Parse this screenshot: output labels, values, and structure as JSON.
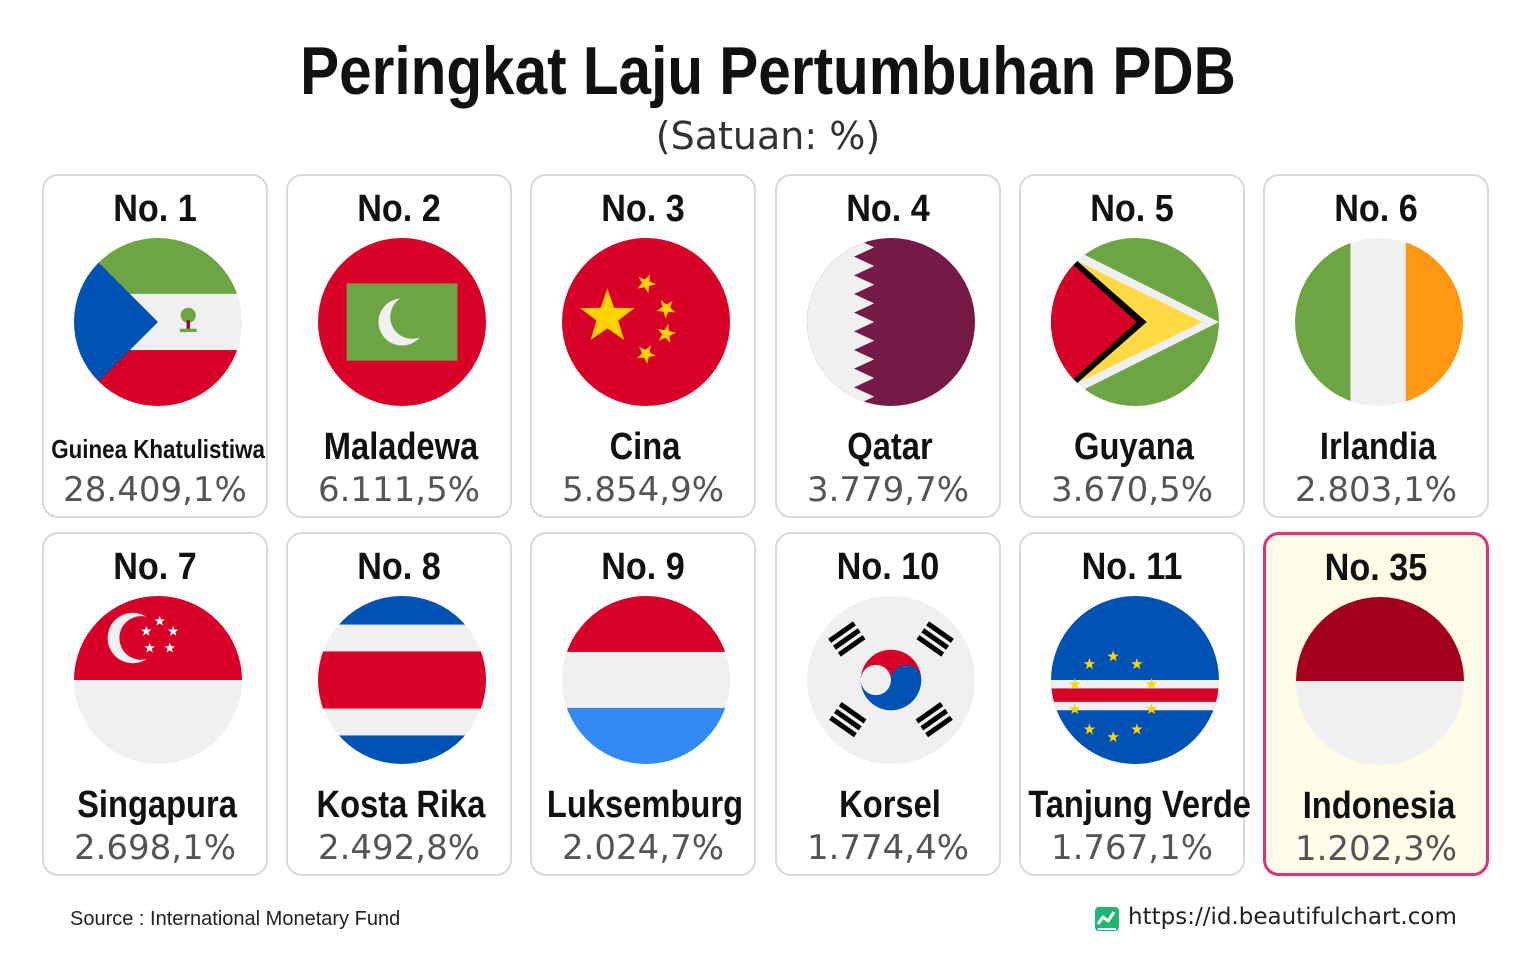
{
  "header": {
    "title": "Peringkat Laju Pertumbuhan PDB",
    "subtitle": "(Satuan: %)"
  },
  "footer": {
    "source": "Source : International Monetary Fund",
    "website": "https://id.beautifulchart.com"
  },
  "colors": {
    "highlight_border": "#e0317a",
    "highlight_bg": "#fffde8",
    "card_border": "#d9d9d9"
  },
  "chart_data": {
    "type": "table",
    "title": "Peringkat Laju Pertumbuhan PDB",
    "subtitle": "(Satuan: %)",
    "items": [
      {
        "rank": "No. 1",
        "country": "Guinea Khatulistiwa",
        "value_label": "28.409,1%",
        "value": 28409.1,
        "flag": "equatorial-guinea"
      },
      {
        "rank": "No. 2",
        "country": "Maladewa",
        "value_label": "6.111,5%",
        "value": 6111.5,
        "flag": "maldives"
      },
      {
        "rank": "No. 3",
        "country": "Cina",
        "value_label": "5.854,9%",
        "value": 5854.9,
        "flag": "china"
      },
      {
        "rank": "No. 4",
        "country": "Qatar",
        "value_label": "3.779,7%",
        "value": 3779.7,
        "flag": "qatar"
      },
      {
        "rank": "No. 5",
        "country": "Guyana",
        "value_label": "3.670,5%",
        "value": 3670.5,
        "flag": "guyana"
      },
      {
        "rank": "No. 6",
        "country": "Irlandia",
        "value_label": "2.803,1%",
        "value": 2803.1,
        "flag": "ireland"
      },
      {
        "rank": "No. 7",
        "country": "Singapura",
        "value_label": "2.698,1%",
        "value": 2698.1,
        "flag": "singapore"
      },
      {
        "rank": "No. 8",
        "country": "Kosta Rika",
        "value_label": "2.492,8%",
        "value": 2492.8,
        "flag": "costa-rica"
      },
      {
        "rank": "No. 9",
        "country": "Luksemburg",
        "value_label": "2.024,7%",
        "value": 2024.7,
        "flag": "luxembourg"
      },
      {
        "rank": "No. 10",
        "country": "Korsel",
        "value_label": "1.774,4%",
        "value": 1774.4,
        "flag": "south-korea"
      },
      {
        "rank": "No. 11",
        "country": "Tanjung Verde",
        "value_label": "1.767,1%",
        "value": 1767.1,
        "flag": "cape-verde"
      },
      {
        "rank": "No. 35",
        "country": "Indonesia",
        "value_label": "1.202,3%",
        "value": 1202.3,
        "flag": "indonesia",
        "highlighted": true
      }
    ]
  }
}
